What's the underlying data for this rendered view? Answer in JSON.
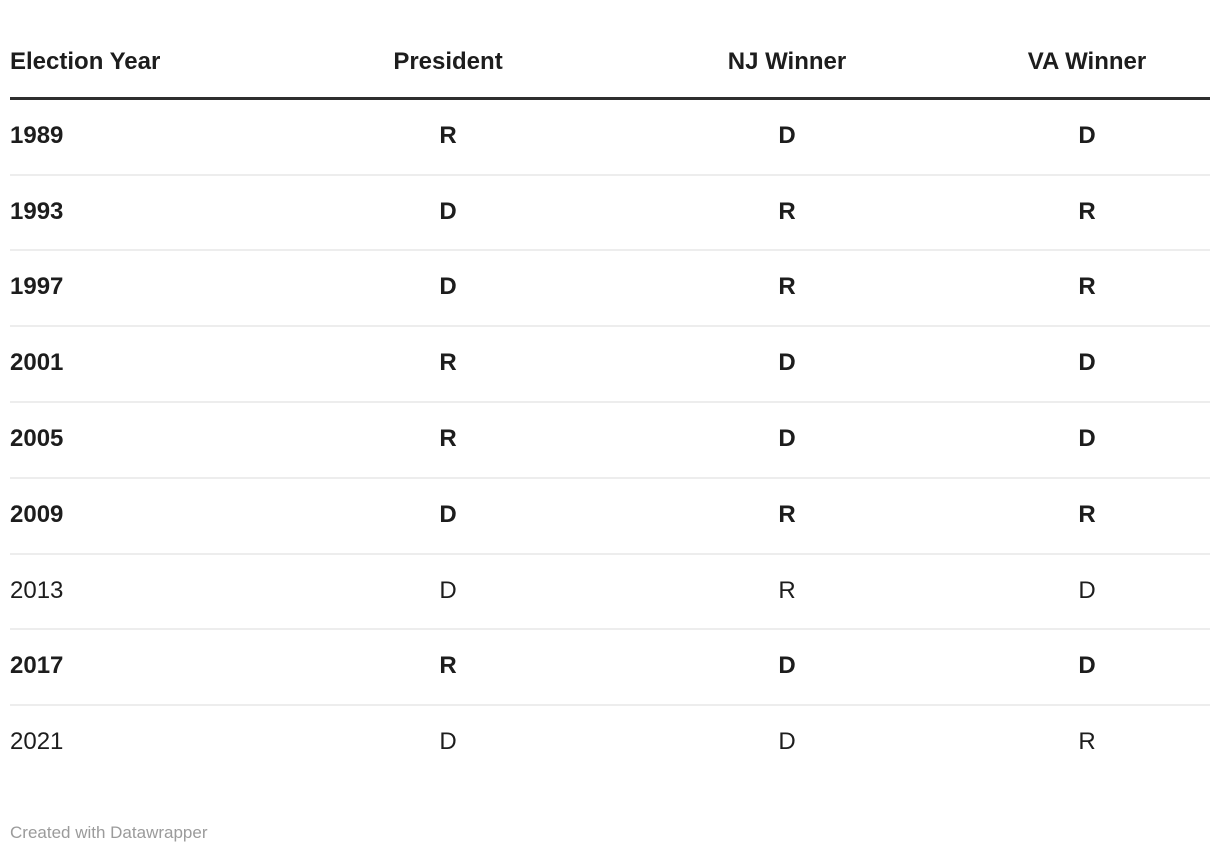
{
  "chart_data": {
    "type": "table",
    "title": "",
    "columns": [
      "Election Year",
      "President",
      "NJ Winner",
      "VA Winner"
    ],
    "rows": [
      {
        "cells": [
          "1989",
          "R",
          "D",
          "D"
        ],
        "emphasis": true
      },
      {
        "cells": [
          "1993",
          "D",
          "R",
          "R"
        ],
        "emphasis": true
      },
      {
        "cells": [
          "1997",
          "D",
          "R",
          "R"
        ],
        "emphasis": true
      },
      {
        "cells": [
          "2001",
          "R",
          "D",
          "D"
        ],
        "emphasis": true
      },
      {
        "cells": [
          "2005",
          "R",
          "D",
          "D"
        ],
        "emphasis": true
      },
      {
        "cells": [
          "2009",
          "D",
          "R",
          "R"
        ],
        "emphasis": true
      },
      {
        "cells": [
          "2013",
          "D",
          "R",
          "D"
        ],
        "emphasis": false
      },
      {
        "cells": [
          "2017",
          "R",
          "D",
          "D"
        ],
        "emphasis": true
      },
      {
        "cells": [
          "2021",
          "D",
          "D",
          "R"
        ],
        "emphasis": false
      }
    ],
    "layout_hints": {
      "first_column_align": "left",
      "other_columns_align": "center",
      "grid": "horizontal-dividers-only"
    }
  },
  "colors": {
    "text": "#1d1d1d",
    "header_rule": "#2e2e2e",
    "row_divider": "#ededed",
    "credit_text": "#9b9b9b",
    "background": "#ffffff"
  },
  "footer": {
    "credit": "Created with Datawrapper"
  }
}
